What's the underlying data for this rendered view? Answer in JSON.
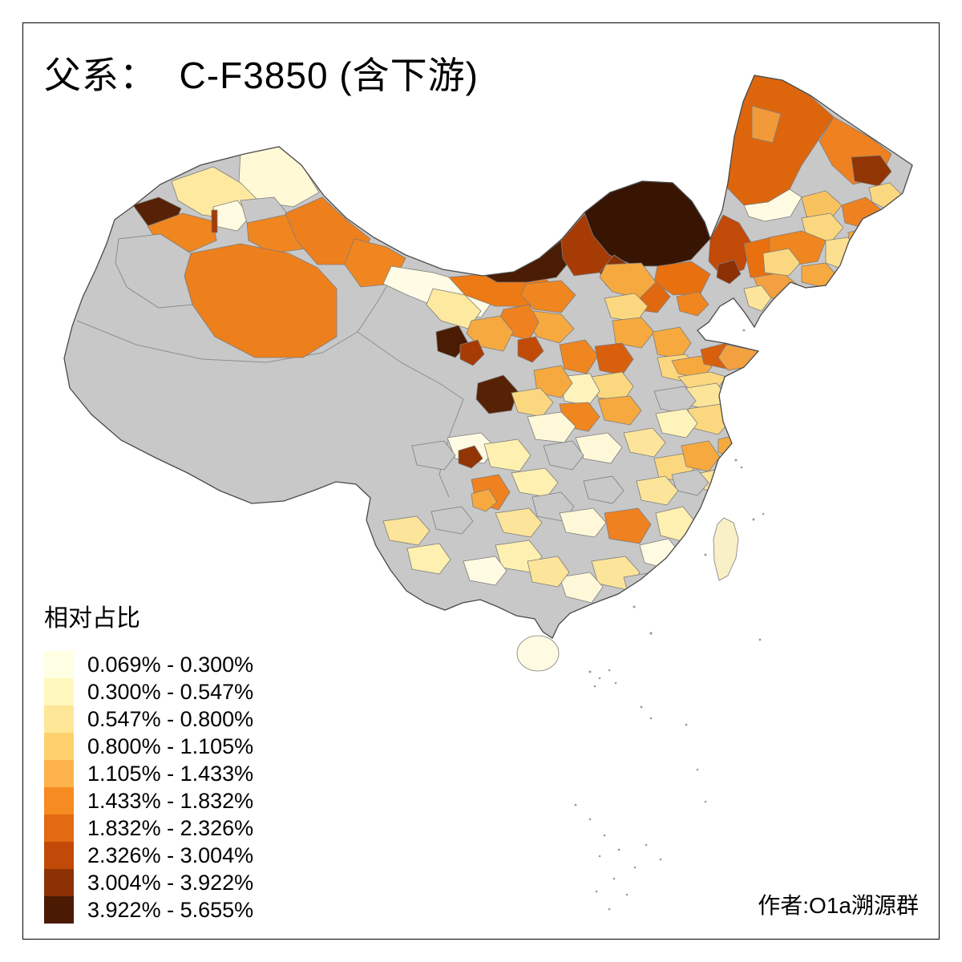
{
  "title": "父系：  C-F3850 (含下游)",
  "legend": {
    "title": "相对占比",
    "items": [
      {
        "label": "0.069% - 0.300%",
        "color": "#FFFFE3"
      },
      {
        "label": "0.300% - 0.547%",
        "color": "#FFF7BE"
      },
      {
        "label": "0.547% - 0.800%",
        "color": "#FEE697"
      },
      {
        "label": "0.800% - 1.105%",
        "color": "#FED16E"
      },
      {
        "label": "1.105% - 1.433%",
        "color": "#FDB24B"
      },
      {
        "label": "1.433% - 1.832%",
        "color": "#F68B22"
      },
      {
        "label": "1.832% - 2.326%",
        "color": "#E26A10"
      },
      {
        "label": "2.326% - 3.004%",
        "color": "#C24A08"
      },
      {
        "label": "3.004% - 3.922%",
        "color": "#8C3104"
      },
      {
        "label": "3.922% - 5.655%",
        "color": "#4A1A02"
      }
    ]
  },
  "credit": "作者:O1a溯源群",
  "map": {
    "no_data_color": "#C8C8C8",
    "border_color": "#4A4A4A"
  }
}
